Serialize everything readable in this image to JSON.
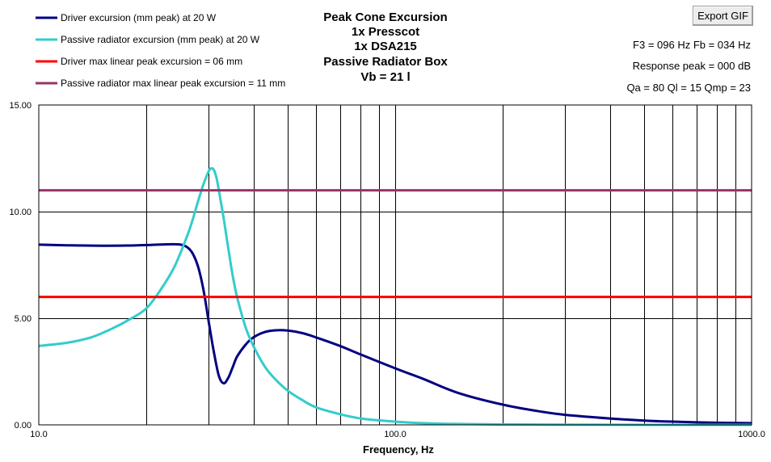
{
  "toolbar": {
    "export_label": "Export GIF"
  },
  "info": {
    "f3_fb": "F3 = 096 Hz  Fb = 034 Hz",
    "response_peak": "Response peak = 000 dB",
    "q_values": "Qa = 80  Ql = 15  Qmp = 23"
  },
  "chart_data": {
    "type": "line",
    "title_lines": [
      "Peak Cone Excursion",
      "1x Presscot",
      "1x DSA215",
      "Passive Radiator Box",
      "Vb = 21 l"
    ],
    "xlabel": "Frequency, Hz",
    "ylabel": "",
    "xscale": "log",
    "xlim": [
      10,
      1000
    ],
    "ylim": [
      0,
      15
    ],
    "grid": true,
    "legend_position": "top-left",
    "x_tick_labels": [
      "10.0",
      "100.0",
      "1000.0"
    ],
    "y_tick_labels": [
      "0.00",
      "5.00",
      "10.00",
      "15.00"
    ],
    "x_ticks": [
      10,
      100,
      1000
    ],
    "y_ticks": [
      0,
      5,
      10,
      15
    ],
    "series": [
      {
        "name": "Driver excursion (mm peak) at 20 W",
        "color": "#000080",
        "x": [
          10,
          12,
          15,
          18,
          20,
          22,
          24,
          25,
          26,
          27,
          28,
          29,
          30,
          31,
          32,
          33,
          34,
          35,
          36,
          38,
          40,
          43,
          46,
          50,
          55,
          60,
          70,
          80,
          100,
          120,
          150,
          200,
          250,
          300,
          400,
          500,
          600,
          800,
          1000
        ],
        "y": [
          8.45,
          8.42,
          8.4,
          8.41,
          8.43,
          8.46,
          8.47,
          8.45,
          8.35,
          8.05,
          7.4,
          6.3,
          4.8,
          3.4,
          2.3,
          1.95,
          2.2,
          2.7,
          3.2,
          3.75,
          4.1,
          4.35,
          4.43,
          4.42,
          4.3,
          4.1,
          3.7,
          3.3,
          2.65,
          2.15,
          1.5,
          0.95,
          0.65,
          0.47,
          0.3,
          0.2,
          0.15,
          0.1,
          0.08
        ]
      },
      {
        "name": "Passive radiator excursion (mm peak) at 20 W",
        "color": "#33CCCC",
        "x": [
          10,
          12,
          14,
          16,
          18,
          20,
          22,
          24,
          26,
          27,
          28,
          29,
          30,
          30.5,
          31,
          31.5,
          32,
          33,
          34,
          35,
          36,
          38,
          40,
          43,
          46,
          50,
          55,
          60,
          70,
          80,
          100,
          120,
          150,
          200,
          300,
          500,
          1000
        ],
        "y": [
          3.7,
          3.85,
          4.1,
          4.5,
          4.95,
          5.45,
          6.35,
          7.4,
          8.8,
          9.6,
          10.5,
          11.3,
          11.9,
          12.03,
          11.95,
          11.6,
          11.0,
          9.7,
          8.3,
          7.0,
          6.0,
          4.6,
          3.7,
          2.75,
          2.15,
          1.6,
          1.15,
          0.82,
          0.5,
          0.3,
          0.15,
          0.08,
          0.04,
          0.02,
          0.01,
          0,
          0
        ]
      },
      {
        "name": "Driver max linear peak excursion = 06 mm",
        "color": "#FF0000",
        "x": [
          10,
          1000
        ],
        "y": [
          6,
          6
        ]
      },
      {
        "name": "Passive radiator max linear peak excursion = 11 mm",
        "color": "#993366",
        "x": [
          10,
          1000
        ],
        "y": [
          11,
          11
        ]
      }
    ]
  }
}
